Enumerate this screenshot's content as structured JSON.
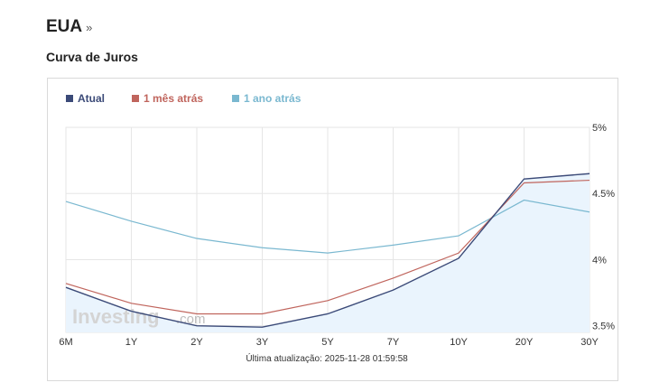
{
  "header": {
    "title": "EUA",
    "more_glyph": "»"
  },
  "section": {
    "title": "Curva de Juros"
  },
  "chart_data": {
    "type": "line",
    "categories": [
      "6M",
      "1Y",
      "2Y",
      "3Y",
      "5Y",
      "7Y",
      "10Y",
      "20Y",
      "30Y"
    ],
    "series": [
      {
        "name": "Atual",
        "color": "#3b4a78",
        "area": true,
        "values": [
          3.79,
          3.61,
          3.5,
          3.49,
          3.59,
          3.77,
          4.01,
          4.61,
          4.65
        ]
      },
      {
        "name": "1 mês atrás",
        "color": "#c0655d",
        "values": [
          3.82,
          3.67,
          3.59,
          3.59,
          3.69,
          3.86,
          4.05,
          4.58,
          4.6
        ]
      },
      {
        "name": "1 ano atrás",
        "color": "#7ab8d0",
        "values": [
          4.44,
          4.29,
          4.16,
          4.09,
          4.05,
          4.11,
          4.18,
          4.45,
          4.36
        ]
      }
    ],
    "y_ticks": [
      {
        "value": 3.5,
        "label": "3.5%"
      },
      {
        "value": 4.0,
        "label": "4%"
      },
      {
        "value": 4.5,
        "label": "4.5%"
      },
      {
        "value": 5.0,
        "label": "5%"
      }
    ],
    "ylim": [
      3.45,
      5.0
    ],
    "grid": true,
    "legend_position": "top-left",
    "area_fill": "#eaf4fd",
    "watermark": "Investing.com",
    "footer": "Última atualização: 2025-11-28 01:59:58"
  }
}
